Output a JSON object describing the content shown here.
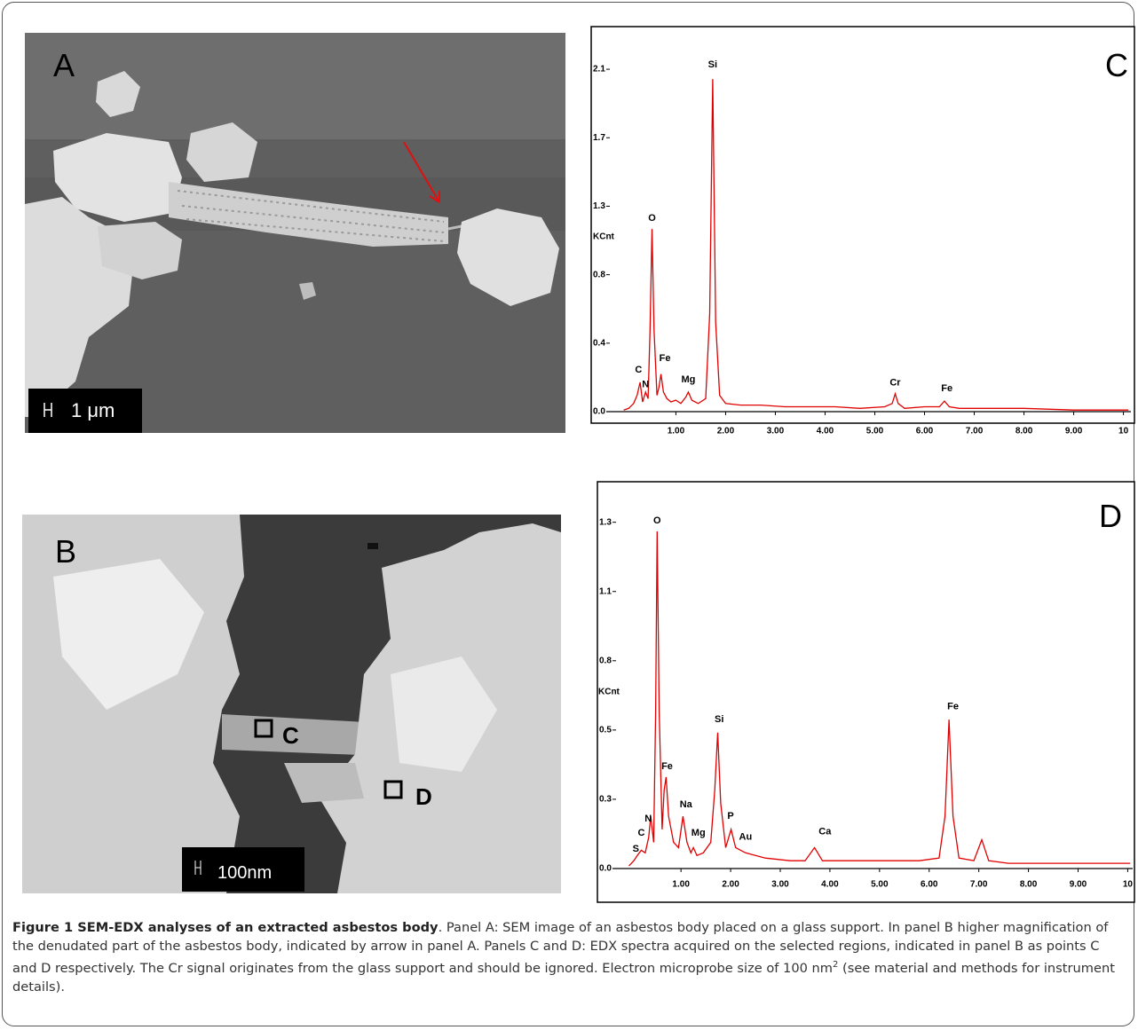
{
  "panels": {
    "a": {
      "label": "A",
      "scale": "1 μm"
    },
    "b": {
      "label": "B",
      "scale": "100nm",
      "markers": [
        "C",
        "D"
      ]
    }
  },
  "chart_data": [
    {
      "type": "line",
      "label": "C",
      "ylabel": "KCnt",
      "color": "#e00000",
      "xlim": [
        -0.4,
        10.15
      ],
      "ylim": [
        0,
        2.28
      ],
      "xticks": [
        {
          "value": 1,
          "label": "1.00"
        },
        {
          "value": 2,
          "label": "2.00"
        },
        {
          "value": 3,
          "label": "3.00"
        },
        {
          "value": 4,
          "label": "4.00"
        },
        {
          "value": 5,
          "label": "5.00"
        },
        {
          "value": 6,
          "label": "6.00"
        },
        {
          "value": 7,
          "label": "7.00"
        },
        {
          "value": 8,
          "label": "8.00"
        },
        {
          "value": 9,
          "label": "9.00"
        },
        10
      ],
      "yticks": [
        {
          "value": 0,
          "label": "0.0"
        },
        {
          "value": 0.42,
          "label": "0.4"
        },
        {
          "value": 0.84,
          "label": "0.8"
        },
        {
          "value": 1.26,
          "label": "1.3"
        },
        {
          "value": 1.68,
          "label": "1.7"
        },
        2.1
      ],
      "x": [
        -0.05,
        0.05,
        0.15,
        0.22,
        0.28,
        0.33,
        0.39,
        0.44,
        0.48,
        0.52,
        0.56,
        0.62,
        0.66,
        0.7,
        0.75,
        0.82,
        0.9,
        1.0,
        1.1,
        1.2,
        1.25,
        1.32,
        1.45,
        1.6,
        1.68,
        1.74,
        1.8,
        1.88,
        2.0,
        2.3,
        2.7,
        3.2,
        3.7,
        4.2,
        4.7,
        5.2,
        5.35,
        5.41,
        5.47,
        5.6,
        6.0,
        6.3,
        6.4,
        6.5,
        6.7,
        7.2,
        8.0,
        9.0,
        10.1
      ],
      "values": [
        0.01,
        0.02,
        0.05,
        0.1,
        0.18,
        0.06,
        0.12,
        0.08,
        0.5,
        1.12,
        0.5,
        0.1,
        0.15,
        0.23,
        0.12,
        0.08,
        0.06,
        0.07,
        0.05,
        0.09,
        0.12,
        0.07,
        0.05,
        0.08,
        0.6,
        2.04,
        0.55,
        0.1,
        0.05,
        0.04,
        0.04,
        0.03,
        0.03,
        0.03,
        0.02,
        0.03,
        0.05,
        0.11,
        0.05,
        0.02,
        0.03,
        0.03,
        0.065,
        0.03,
        0.02,
        0.02,
        0.02,
        0.01,
        0.01
      ],
      "annotations": [
        {
          "text": "C",
          "x": 0.25,
          "y": 0.24
        },
        {
          "text": "N",
          "x": 0.39,
          "y": 0.15
        },
        {
          "text": "O",
          "x": 0.52,
          "y": 1.17
        },
        {
          "text": "Fe",
          "x": 0.78,
          "y": 0.31
        },
        {
          "text": "Mg",
          "x": 1.25,
          "y": 0.18
        },
        {
          "text": "Si",
          "x": 1.74,
          "y": 2.11
        },
        {
          "text": "Cr",
          "x": 5.41,
          "y": 0.16
        },
        {
          "text": "Fe",
          "x": 6.45,
          "y": 0.125
        }
      ]
    },
    {
      "type": "line",
      "label": "D",
      "ylabel": "KCnt",
      "color": "#e00000",
      "xlim": [
        -0.38,
        10.1
      ],
      "ylim": [
        0,
        1.48
      ],
      "xticks": [
        {
          "value": 1,
          "label": "1.00"
        },
        {
          "value": 2,
          "label": "2.00"
        },
        {
          "value": 3,
          "label": "3.00"
        },
        {
          "value": 4,
          "label": "4.00"
        },
        {
          "value": 5,
          "label": "5.00"
        },
        {
          "value": 6,
          "label": "6.00"
        },
        {
          "value": 7,
          "label": "7.00"
        },
        {
          "value": 8,
          "label": "8.00"
        },
        {
          "value": 9,
          "label": "9.00"
        },
        10
      ],
      "yticks": [
        {
          "value": 0,
          "label": "0.0"
        },
        {
          "value": 0.265,
          "label": "0.3"
        },
        {
          "value": 0.53,
          "label": "0.5"
        },
        {
          "value": 0.795,
          "label": "0.8"
        },
        {
          "value": 1.06,
          "label": "1.1"
        },
        {
          "value": 1.325,
          "label": "1.3"
        }
      ],
      "x": [
        -0.05,
        0.05,
        0.12,
        0.2,
        0.28,
        0.35,
        0.39,
        0.45,
        0.49,
        0.52,
        0.56,
        0.62,
        0.66,
        0.7,
        0.75,
        0.85,
        0.95,
        1.04,
        1.12,
        1.2,
        1.25,
        1.32,
        1.45,
        1.6,
        1.68,
        1.74,
        1.8,
        1.9,
        2.01,
        2.1,
        2.3,
        2.7,
        3.2,
        3.5,
        3.69,
        3.85,
        4.3,
        5.0,
        5.8,
        6.2,
        6.32,
        6.4,
        6.48,
        6.6,
        6.9,
        7.06,
        7.2,
        7.6,
        8.5,
        9.5,
        10.05
      ],
      "values": [
        0.01,
        0.03,
        0.05,
        0.07,
        0.06,
        0.12,
        0.2,
        0.1,
        0.6,
        1.29,
        0.6,
        0.15,
        0.3,
        0.35,
        0.2,
        0.1,
        0.08,
        0.2,
        0.1,
        0.06,
        0.08,
        0.05,
        0.06,
        0.1,
        0.3,
        0.52,
        0.25,
        0.08,
        0.15,
        0.08,
        0.06,
        0.04,
        0.03,
        0.03,
        0.08,
        0.03,
        0.03,
        0.03,
        0.03,
        0.04,
        0.2,
        0.57,
        0.2,
        0.04,
        0.03,
        0.11,
        0.03,
        0.02,
        0.02,
        0.02,
        0.02
      ],
      "annotations": [
        {
          "text": "S",
          "x": 0.09,
          "y": 0.065
        },
        {
          "text": "C",
          "x": 0.2,
          "y": 0.125
        },
        {
          "text": "N",
          "x": 0.34,
          "y": 0.18
        },
        {
          "text": "O",
          "x": 0.52,
          "y": 1.32
        },
        {
          "text": "Fe",
          "x": 0.72,
          "y": 0.38
        },
        {
          "text": "Na",
          "x": 1.1,
          "y": 0.235
        },
        {
          "text": "Mg",
          "x": 1.35,
          "y": 0.125
        },
        {
          "text": "Si",
          "x": 1.77,
          "y": 0.56
        },
        {
          "text": "P",
          "x": 2.0,
          "y": 0.19
        },
        {
          "text": "Au",
          "x": 2.3,
          "y": 0.11
        },
        {
          "text": "Ca",
          "x": 3.9,
          "y": 0.13
        },
        {
          "text": "Fe",
          "x": 6.48,
          "y": 0.61
        }
      ]
    }
  ],
  "caption": {
    "title": "Figure 1 SEM-EDX analyses of an extracted asbestos body",
    "text": ". Panel A: SEM image of an asbestos body placed on a glass support. In panel B higher magnification of the denudated part of the asbestos body, indicated by arrow in panel A. Panels C and D: EDX spectra acquired on the selected regions, indicated in panel B as points C and D respectively. The Cr signal originates from the glass support and should be ignored. Electron microprobe size of 100 nm",
    "sup": "2",
    "tail": " (see material and methods for instrument details)."
  }
}
